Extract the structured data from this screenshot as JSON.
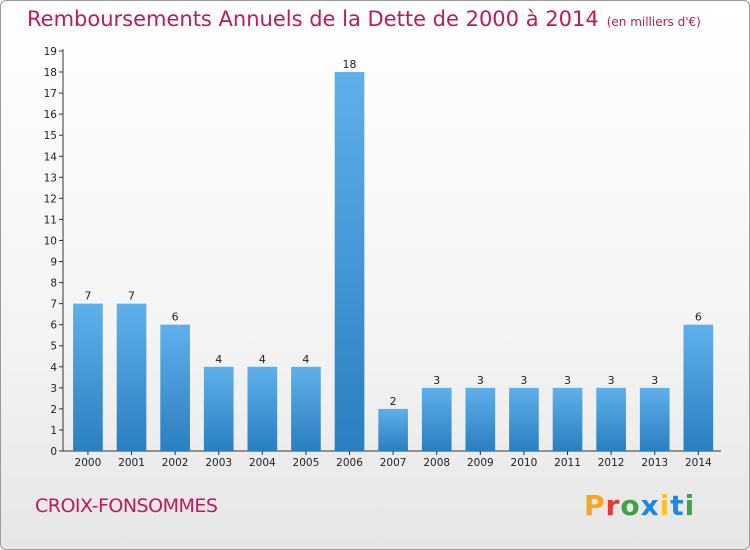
{
  "title": "Remboursements Annuels de la Dette de 2000 à 2014",
  "unit": "(en milliers d'€)",
  "commune": "CROIX-FONSOMMES",
  "logo": {
    "letters": [
      "P",
      "r",
      "o",
      "x",
      "i",
      "t",
      "i"
    ],
    "colors": [
      "#f5a623",
      "#e53935",
      "#43a047",
      "#1e88e5",
      "#fbc02d",
      "#1e88e5",
      "#43a047"
    ]
  },
  "colors": {
    "bar_top": "#5fb0ea",
    "bar_bottom": "#2a7fc0",
    "title": "#c2185b"
  },
  "chart_data": {
    "type": "bar",
    "categories": [
      "2000",
      "2001",
      "2002",
      "2003",
      "2004",
      "2005",
      "2006",
      "2007",
      "2008",
      "2009",
      "2010",
      "2011",
      "2012",
      "2013",
      "2014"
    ],
    "values": [
      7,
      7,
      6,
      4,
      4,
      4,
      18,
      2,
      3,
      3,
      3,
      3,
      3,
      3,
      6
    ],
    "data_labels": [
      "7",
      "7",
      "6",
      "4",
      "4",
      "4",
      "18",
      "2",
      "3",
      "3",
      "3",
      "3",
      "3",
      "3",
      "6"
    ],
    "y_ticks": [
      "0",
      "1",
      "2",
      "3",
      "4",
      "5",
      "6",
      "7",
      "8",
      "9",
      "10",
      "11",
      "12",
      "13",
      "14",
      "15",
      "16",
      "17",
      "18",
      "19"
    ],
    "ylim": [
      0,
      19
    ],
    "grid": false,
    "legend": "none"
  }
}
